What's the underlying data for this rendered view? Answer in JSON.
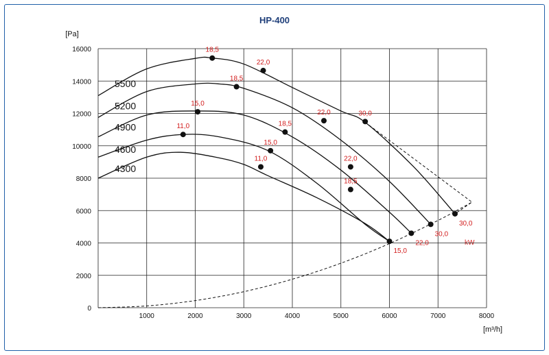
{
  "chart_data": {
    "type": "line",
    "title": "HP-400",
    "ylabel": "[Pa]",
    "xlabel": "[m³/h]",
    "xlim": [
      0,
      8000
    ],
    "ylim": [
      0,
      16000
    ],
    "x_ticks": [
      1000,
      2000,
      3000,
      4000,
      5000,
      6000,
      7000,
      8000
    ],
    "y_ticks": [
      0,
      2000,
      4000,
      6000,
      8000,
      10000,
      12000,
      14000,
      16000
    ],
    "power_unit": "kW",
    "series": [
      {
        "name": "5500",
        "x": [
          0,
          1000,
          2000,
          2350,
          3000,
          4000,
          5000,
          5500,
          6500,
          7350
        ],
        "y": [
          13100,
          14750,
          15400,
          15420,
          15050,
          13600,
          12150,
          11450,
          8700,
          5800
        ]
      },
      {
        "name": "5200",
        "x": [
          0,
          1000,
          2000,
          2500,
          3000,
          4000,
          5000,
          6000,
          6850
        ],
        "y": [
          11750,
          13350,
          13820,
          13820,
          13550,
          12350,
          10350,
          7800,
          5150
        ]
      },
      {
        "name": "4900",
        "x": [
          0,
          1000,
          2000,
          3000,
          4000,
          5000,
          6000,
          6450
        ],
        "y": [
          10550,
          11900,
          12150,
          11900,
          10550,
          8500,
          5900,
          4600
        ]
      },
      {
        "name": "4600",
        "x": [
          0,
          1000,
          1750,
          2500,
          3500,
          4500,
          5500,
          6000
        ],
        "y": [
          9300,
          10350,
          10700,
          10550,
          9700,
          7700,
          5150,
          4100
        ]
      },
      {
        "name": "4300",
        "x": [
          0,
          1000,
          1700,
          2500,
          3000,
          3500,
          4500,
          5500,
          6000
        ],
        "y": [
          8000,
          9300,
          9600,
          9250,
          8850,
          8150,
          6800,
          5200,
          4100
        ]
      }
    ],
    "power_points": [
      {
        "x": 2350,
        "y": 15420,
        "label": "18,5"
      },
      {
        "x": 3400,
        "y": 14650,
        "label": "22,0"
      },
      {
        "x": 5500,
        "y": 11500,
        "label": "30,0"
      },
      {
        "x": 2850,
        "y": 13650,
        "label": "18,5"
      },
      {
        "x": 4650,
        "y": 11550,
        "label": "22,0"
      },
      {
        "x": 7350,
        "y": 5800,
        "label": "30,0"
      },
      {
        "x": 2050,
        "y": 12100,
        "label": "15,0"
      },
      {
        "x": 3850,
        "y": 10850,
        "label": "18,5"
      },
      {
        "x": 5200,
        "y": 8700,
        "label": "22,0"
      },
      {
        "x": 6850,
        "y": 5150,
        "label": "30,0"
      },
      {
        "x": 1750,
        "y": 10700,
        "label": "11,0"
      },
      {
        "x": 3550,
        "y": 9700,
        "label": "15,0"
      },
      {
        "x": 5200,
        "y": 7300,
        "label": "18,5"
      },
      {
        "x": 6450,
        "y": 4600,
        "label": "22,0"
      },
      {
        "x": 3350,
        "y": 8700,
        "label": "11,0"
      },
      {
        "x": 6000,
        "y": 4100,
        "label": "15,0"
      }
    ],
    "system_curve": {
      "x": [
        0,
        1000,
        2000,
        3000,
        4000,
        5000,
        6000,
        7000,
        7700
      ],
      "y": [
        0,
        110,
        440,
        990,
        1760,
        2750,
        3960,
        5390,
        6520
      ]
    },
    "limit_line": {
      "x": [
        5500,
        7700,
        7350
      ],
      "y": [
        11450,
        6520,
        5800
      ]
    }
  }
}
